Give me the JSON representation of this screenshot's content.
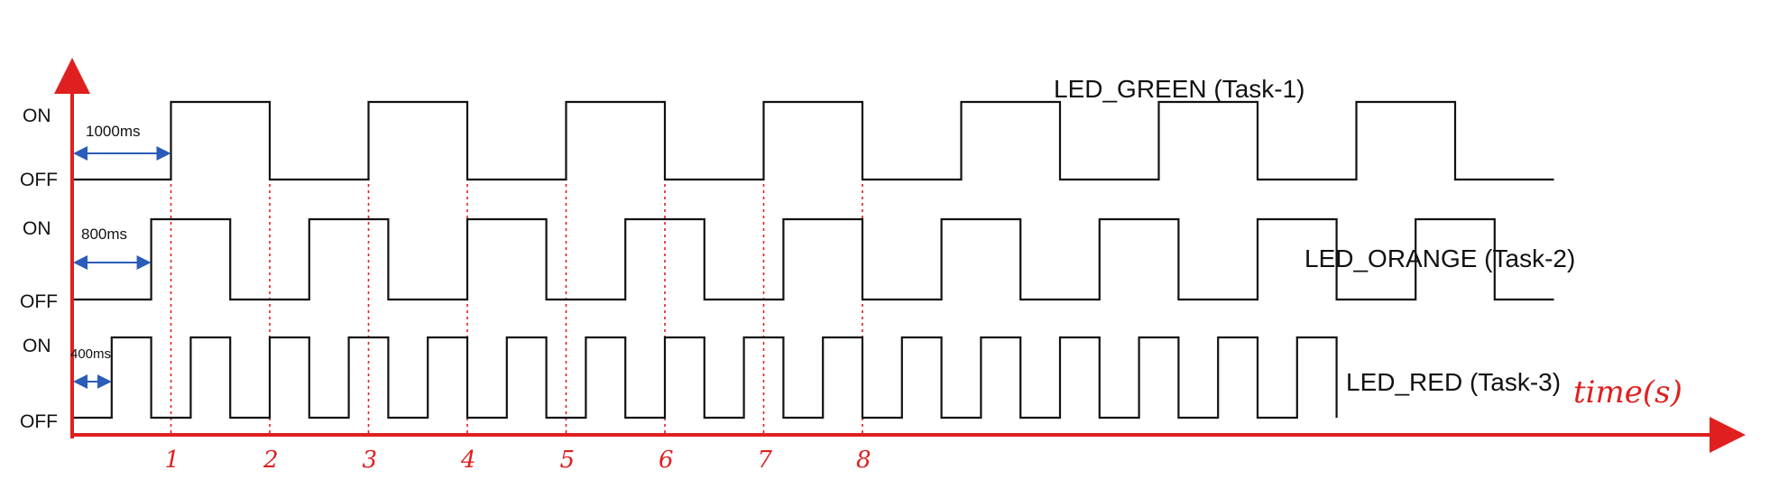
{
  "colors": {
    "axis": "#e02020",
    "wave": "#111111",
    "marker": "#e02020",
    "duration_arrow": "#2a5cb8"
  },
  "signals": [
    {
      "id": "green",
      "label": "LED_GREEN (Task-1)",
      "on_label": "ON",
      "off_label": "OFF",
      "initial_delay_label": "1000ms",
      "period_s": 2.0,
      "high_first_s": 1.0,
      "end_s": 15.0
    },
    {
      "id": "orange",
      "label": "LED_ORANGE (Task-2)",
      "on_label": "ON",
      "off_label": "OFF",
      "initial_delay_label": "800ms",
      "period_s": 1.6,
      "high_first_s": 0.8,
      "end_s": 15.0
    },
    {
      "id": "red",
      "label": "LED_RED (Task-3)",
      "on_label": "ON",
      "off_label": "OFF",
      "initial_delay_label": "400ms",
      "period_s": 0.8,
      "high_first_s": 0.4,
      "end_s": 12.8
    }
  ],
  "time_axis": {
    "label": "time(s)",
    "ticks": [
      "1",
      "2",
      "3",
      "4",
      "5",
      "6",
      "7",
      "8"
    ],
    "tick_values": [
      1,
      2,
      3,
      4,
      5,
      6,
      7,
      8
    ]
  }
}
